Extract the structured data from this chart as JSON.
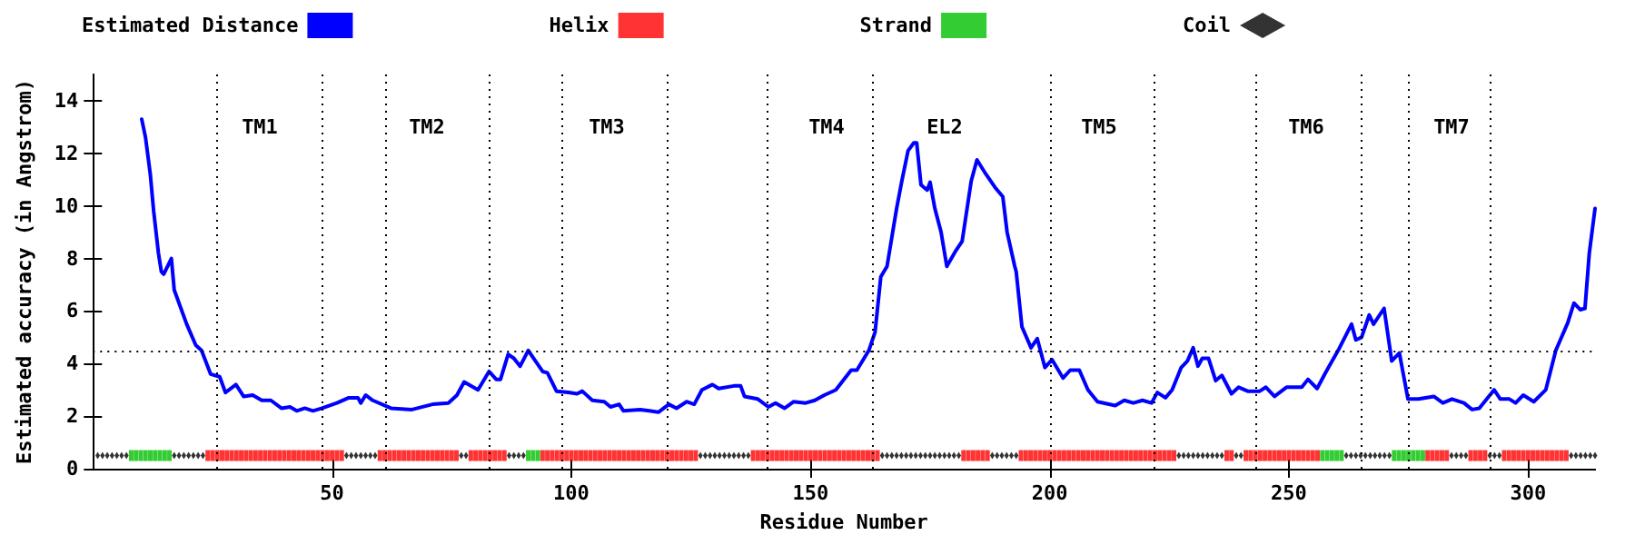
{
  "chart_data": {
    "type": "line",
    "xlabel": "Residue Number",
    "ylabel": "Estimated accuracy (in Angstrom)",
    "xlim": [
      0,
      314
    ],
    "xticks": [
      50,
      100,
      150,
      200,
      250,
      300
    ],
    "ylim": [
      0,
      15
    ],
    "yticks": [
      0,
      2,
      4,
      6,
      8,
      10,
      12,
      14
    ],
    "grid": false,
    "legend": "top",
    "series": [
      {
        "name": "Estimated Distance",
        "type": "line",
        "color": "#0000ff",
        "marker": "none",
        "x": [
          10.2,
          11,
          12,
          12.7,
          13.7,
          14.3,
          14.8,
          16.4,
          17,
          19.6,
          21.5,
          22.7,
          24.6,
          26.5,
          27.7,
          29.9,
          31.5,
          33.4,
          35.3,
          37.2,
          39.4,
          41.2,
          42.6,
          44.3,
          46,
          47.9,
          51,
          53.5,
          55.4,
          56,
          57,
          58.5,
          62.3,
          66.7,
          71,
          74.3,
          76.1,
          77.6,
          80.5,
          82.8,
          84.3,
          85.2,
          86.8,
          88,
          89.3,
          91,
          92.5,
          94,
          95,
          96.9,
          99.4,
          101.2,
          102.3,
          104.4,
          106.9,
          108.2,
          110,
          110.9,
          114.4,
          116.3,
          118.2,
          120.4,
          122,
          124.1,
          125.7,
          127.3,
          129.5,
          130.8,
          134,
          135.4,
          136.2,
          139,
          141.2,
          142.7,
          144.6,
          146.5,
          149,
          150.9,
          152.9,
          155.3,
          158.5,
          159.7,
          162.2,
          163.5,
          164.7,
          166,
          168,
          169.1,
          170.4,
          171.6,
          172.2,
          173.1,
          174.4,
          175,
          176,
          177.3,
          178.5,
          180.4,
          181.7,
          183.6,
          184.8,
          186.7,
          188.6,
          190.2,
          191.1,
          192.7,
          193,
          194.2,
          196.1,
          197.4,
          199,
          200.5,
          202.8,
          204.3,
          206.2,
          208,
          210,
          213.7,
          215.6,
          217.5,
          219.4,
          221.3,
          222.5,
          224.2,
          225.6,
          227.5,
          228.8,
          230,
          231,
          231.9,
          233.2,
          234.7,
          236,
          238,
          239.5,
          241.4,
          243.9,
          245.2,
          247,
          249.5,
          252.7,
          254,
          255.9,
          257.8,
          260.3,
          263.1,
          264,
          265.2,
          266.8,
          267.7,
          269.9,
          271.5,
          273.1,
          274.9,
          277.1,
          280.3,
          282.2,
          284.1,
          286.6,
          288.3,
          289.8,
          292.9,
          294.2,
          296.1,
          297.4,
          299,
          301.2,
          303.7,
          305.8,
          308.3,
          309.6,
          310.9,
          311.9,
          312.8,
          314
        ],
        "values": [
          13.3,
          12.6,
          11.2,
          9.8,
          8.2,
          7.5,
          7.4,
          8.0,
          6.8,
          5.5,
          4.7,
          4.5,
          3.6,
          3.5,
          2.9,
          3.2,
          2.75,
          2.8,
          2.6,
          2.6,
          2.3,
          2.35,
          2.2,
          2.3,
          2.2,
          2.3,
          2.5,
          2.7,
          2.7,
          2.5,
          2.8,
          2.6,
          2.3,
          2.25,
          2.45,
          2.5,
          2.8,
          3.3,
          3.0,
          3.7,
          3.4,
          3.4,
          4.35,
          4.2,
          3.9,
          4.5,
          4.1,
          3.7,
          3.65,
          2.95,
          2.9,
          2.85,
          2.95,
          2.6,
          2.55,
          2.35,
          2.45,
          2.2,
          2.25,
          2.2,
          2.15,
          2.45,
          2.3,
          2.55,
          2.45,
          3.0,
          3.2,
          3.05,
          3.15,
          3.15,
          2.75,
          2.65,
          2.35,
          2.5,
          2.3,
          2.55,
          2.5,
          2.6,
          2.8,
          3.0,
          3.75,
          3.75,
          4.5,
          5.2,
          7.3,
          7.7,
          9.9,
          10.95,
          12.1,
          12.4,
          12.4,
          10.8,
          10.6,
          10.9,
          9.9,
          9.0,
          7.7,
          8.3,
          8.65,
          10.95,
          11.75,
          11.2,
          10.7,
          10.35,
          9.0,
          7.7,
          7.5,
          5.4,
          4.6,
          4.95,
          3.85,
          4.15,
          3.45,
          3.75,
          3.75,
          3.0,
          2.55,
          2.4,
          2.6,
          2.5,
          2.6,
          2.5,
          2.9,
          2.7,
          3.0,
          3.85,
          4.1,
          4.6,
          3.9,
          4.2,
          4.2,
          3.35,
          3.55,
          2.85,
          3.1,
          2.95,
          2.95,
          3.1,
          2.75,
          3.1,
          3.1,
          3.4,
          3.05,
          3.7,
          4.5,
          5.5,
          4.9,
          5.0,
          5.85,
          5.5,
          6.1,
          4.1,
          4.4,
          2.65,
          2.65,
          2.75,
          2.5,
          2.65,
          2.5,
          2.25,
          2.3,
          3.0,
          2.65,
          2.65,
          2.5,
          2.8,
          2.55,
          3.0,
          4.5,
          5.55,
          6.3,
          6.05,
          6.1,
          8.2,
          9.9
        ]
      },
      {
        "name": "Helix",
        "type": "scatter",
        "color": "#ff0000",
        "marker": "square",
        "x": [
          24,
          25,
          26,
          27,
          28,
          29,
          30,
          31,
          32,
          33,
          34,
          35,
          36,
          37,
          38,
          39,
          40,
          41,
          42,
          43,
          44,
          45,
          46,
          47,
          48,
          49,
          50,
          51,
          52,
          60,
          61,
          62,
          63,
          64,
          65,
          66,
          67,
          68,
          69,
          70,
          71,
          72,
          73,
          74,
          75,
          76,
          79,
          80,
          81,
          82,
          83,
          84,
          85,
          86,
          94,
          95,
          96,
          97,
          98,
          99,
          100,
          101,
          102,
          103,
          104,
          105,
          106,
          107,
          108,
          109,
          110,
          111,
          112,
          113,
          114,
          115,
          116,
          117,
          118,
          119,
          120,
          121,
          122,
          123,
          124,
          125,
          126,
          138,
          139,
          140,
          141,
          142,
          143,
          144,
          145,
          146,
          147,
          148,
          149,
          150,
          151,
          152,
          153,
          154,
          155,
          156,
          157,
          158,
          159,
          160,
          161,
          162,
          163,
          164,
          182,
          183,
          184,
          185,
          186,
          187,
          194,
          195,
          196,
          197,
          198,
          199,
          200,
          201,
          202,
          203,
          204,
          205,
          206,
          207,
          208,
          209,
          210,
          211,
          212,
          213,
          214,
          215,
          216,
          217,
          218,
          219,
          220,
          221,
          222,
          223,
          224,
          225,
          226,
          237,
          238,
          241,
          242,
          243,
          244,
          245,
          246,
          247,
          248,
          249,
          250,
          251,
          252,
          253,
          254,
          255,
          256,
          279,
          280,
          281,
          282,
          283,
          288,
          289,
          290,
          291,
          295,
          296,
          297,
          298,
          299,
          300,
          301,
          302,
          303,
          304,
          305,
          306,
          307,
          308
        ],
        "values": [
          0.5,
          0.5,
          0.5,
          0.5,
          0.5,
          0.5,
          0.5,
          0.5,
          0.5,
          0.5,
          0.5,
          0.5,
          0.5,
          0.5,
          0.5,
          0.5,
          0.5,
          0.5,
          0.5,
          0.5,
          0.5,
          0.5,
          0.5,
          0.5,
          0.5,
          0.5,
          0.5,
          0.5,
          0.5,
          0.5,
          0.5,
          0.5,
          0.5,
          0.5,
          0.5,
          0.5,
          0.5,
          0.5,
          0.5,
          0.5,
          0.5,
          0.5,
          0.5,
          0.5,
          0.5,
          0.5,
          0.5,
          0.5,
          0.5,
          0.5,
          0.5,
          0.5,
          0.5,
          0.5,
          0.5,
          0.5,
          0.5,
          0.5,
          0.5,
          0.5,
          0.5,
          0.5,
          0.5,
          0.5,
          0.5,
          0.5,
          0.5,
          0.5,
          0.5,
          0.5,
          0.5,
          0.5,
          0.5,
          0.5,
          0.5,
          0.5,
          0.5,
          0.5,
          0.5,
          0.5,
          0.5,
          0.5,
          0.5,
          0.5,
          0.5,
          0.5,
          0.5,
          0.5,
          0.5,
          0.5,
          0.5,
          0.5,
          0.5,
          0.5,
          0.5,
          0.5,
          0.5,
          0.5,
          0.5,
          0.5,
          0.5,
          0.5,
          0.5,
          0.5,
          0.5,
          0.5,
          0.5,
          0.5,
          0.5,
          0.5,
          0.5,
          0.5,
          0.5,
          0.5,
          0.5,
          0.5,
          0.5,
          0.5,
          0.5,
          0.5,
          0.5,
          0.5,
          0.5,
          0.5,
          0.5,
          0.5,
          0.5,
          0.5,
          0.5,
          0.5,
          0.5,
          0.5,
          0.5,
          0.5,
          0.5,
          0.5,
          0.5,
          0.5,
          0.5,
          0.5,
          0.5,
          0.5,
          0.5,
          0.5,
          0.5,
          0.5,
          0.5,
          0.5,
          0.5,
          0.5,
          0.5,
          0.5,
          0.5,
          0.5,
          0.5,
          0.5,
          0.5,
          0.5,
          0.5,
          0.5,
          0.5,
          0.5,
          0.5,
          0.5,
          0.5,
          0.5,
          0.5,
          0.5,
          0.5,
          0.5,
          0.5,
          0.5,
          0.5,
          0.5,
          0.5,
          0.5,
          0.5,
          0.5,
          0.5,
          0.5,
          0.5,
          0.5,
          0.5,
          0.5,
          0.5,
          0.5,
          0.5,
          0.5,
          0.5,
          0.5,
          0.5,
          0.5,
          0.5,
          0.5
        ]
      },
      {
        "name": "Strand",
        "type": "scatter",
        "color": "#00c000",
        "marker": "square",
        "x": [
          8,
          9,
          10,
          11,
          12,
          13,
          14,
          15,
          16,
          91,
          92,
          93,
          257,
          258,
          259,
          260,
          261,
          272,
          273,
          274,
          275,
          276,
          277,
          278
        ],
        "values": [
          0.5,
          0.5,
          0.5,
          0.5,
          0.5,
          0.5,
          0.5,
          0.5,
          0.5,
          0.5,
          0.5,
          0.5,
          0.5,
          0.5,
          0.5,
          0.5,
          0.5,
          0.5,
          0.5,
          0.5,
          0.5,
          0.5,
          0.5,
          0.5
        ]
      },
      {
        "name": "Coil",
        "type": "scatter",
        "color": "#000000",
        "marker": "diamond",
        "x": [
          1,
          2,
          3,
          4,
          5,
          6,
          7,
          17,
          18,
          19,
          20,
          21,
          22,
          23,
          53,
          54,
          55,
          56,
          57,
          58,
          59,
          77,
          78,
          87,
          88,
          89,
          90,
          127,
          128,
          129,
          130,
          131,
          132,
          133,
          134,
          135,
          136,
          137,
          165,
          166,
          167,
          168,
          169,
          170,
          171,
          172,
          173,
          174,
          175,
          176,
          177,
          178,
          179,
          180,
          181,
          188,
          189,
          190,
          191,
          192,
          193,
          227,
          228,
          229,
          230,
          231,
          232,
          233,
          234,
          235,
          236,
          239,
          240,
          262,
          263,
          264,
          265,
          266,
          267,
          268,
          269,
          270,
          271,
          284,
          285,
          286,
          287,
          292,
          293,
          294,
          309,
          310,
          311,
          312,
          313,
          314
        ],
        "values": [
          0.5,
          0.5,
          0.5,
          0.5,
          0.5,
          0.5,
          0.5,
          0.5,
          0.5,
          0.5,
          0.5,
          0.5,
          0.5,
          0.5,
          0.5,
          0.5,
          0.5,
          0.5,
          0.5,
          0.5,
          0.5,
          0.5,
          0.5,
          0.5,
          0.5,
          0.5,
          0.5,
          0.5,
          0.5,
          0.5,
          0.5,
          0.5,
          0.5,
          0.5,
          0.5,
          0.5,
          0.5,
          0.5,
          0.5,
          0.5,
          0.5,
          0.5,
          0.5,
          0.5,
          0.5,
          0.5,
          0.5,
          0.5,
          0.5,
          0.5,
          0.5,
          0.5,
          0.5,
          0.5,
          0.5,
          0.5,
          0.5,
          0.5,
          0.5,
          0.5,
          0.5,
          0.5,
          0.5,
          0.5,
          0.5,
          0.5,
          0.5,
          0.5,
          0.5,
          0.5,
          0.5,
          0.5,
          0.5,
          0.5,
          0.5,
          0.5,
          0.5,
          0.5,
          0.5,
          0.5,
          0.5,
          0.5,
          0.5,
          0.5,
          0.5,
          0.5,
          0.5,
          0.5,
          0.5,
          0.5,
          0.5,
          0.5,
          0.5,
          0.5,
          0.5,
          0.5
        ]
      }
    ],
    "ref_lines": [
      {
        "axis": "x",
        "value": 26,
        "color": "#000000",
        "line_style": "dotted"
      },
      {
        "axis": "x",
        "value": 48,
        "color": "#000000",
        "line_style": "dotted"
      },
      {
        "axis": "x",
        "value": 61,
        "color": "#000000",
        "line_style": "dotted"
      },
      {
        "axis": "x",
        "value": 83,
        "color": "#000000",
        "line_style": "dotted"
      },
      {
        "axis": "x",
        "value": 98,
        "color": "#000000",
        "line_style": "dotted"
      },
      {
        "axis": "x",
        "value": 120,
        "color": "#000000",
        "line_style": "dotted"
      },
      {
        "axis": "x",
        "value": 141,
        "color": "#000000",
        "line_style": "dotted"
      },
      {
        "axis": "x",
        "value": 163,
        "color": "#000000",
        "line_style": "dotted"
      },
      {
        "axis": "x",
        "value": 200,
        "color": "#000000",
        "line_style": "dotted"
      },
      {
        "axis": "x",
        "value": 222,
        "color": "#000000",
        "line_style": "dotted"
      },
      {
        "axis": "x",
        "value": 243,
        "color": "#000000",
        "line_style": "dotted"
      },
      {
        "axis": "x",
        "value": 265,
        "color": "#000000",
        "line_style": "dotted"
      },
      {
        "axis": "x",
        "value": 275,
        "color": "#000000",
        "line_style": "dotted"
      },
      {
        "axis": "x",
        "value": 292,
        "color": "#000000",
        "line_style": "dotted"
      },
      {
        "axis": "y",
        "value": 4.45,
        "color": "#000000",
        "line_style": "dotted"
      }
    ],
    "annotations": [
      "TM1",
      "TM2",
      "TM3",
      "TM4",
      "EL2",
      "TM5",
      "TM6",
      "TM7"
    ]
  }
}
